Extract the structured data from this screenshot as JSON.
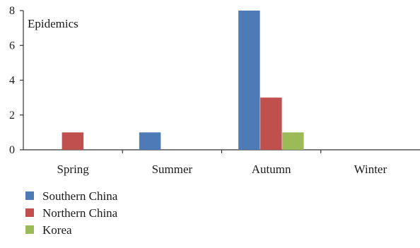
{
  "chart_data": {
    "type": "bar",
    "ylabel": "Epidemics",
    "ylim": [
      0,
      8
    ],
    "yticks": [
      0,
      2,
      4,
      6,
      8
    ],
    "categories": [
      "Spring",
      "Summer",
      "Autumn",
      "Winter"
    ],
    "series": [
      {
        "name": "Southern China",
        "color": "#4e7ab5",
        "values": [
          0,
          1,
          8,
          0
        ]
      },
      {
        "name": "Northern China",
        "color": "#c0504d",
        "values": [
          1,
          0,
          3,
          0
        ]
      },
      {
        "name": "Korea",
        "color": "#9bbb59",
        "values": [
          0,
          0,
          1,
          0
        ]
      }
    ],
    "legend_position": "bottom-left",
    "grid": false
  }
}
